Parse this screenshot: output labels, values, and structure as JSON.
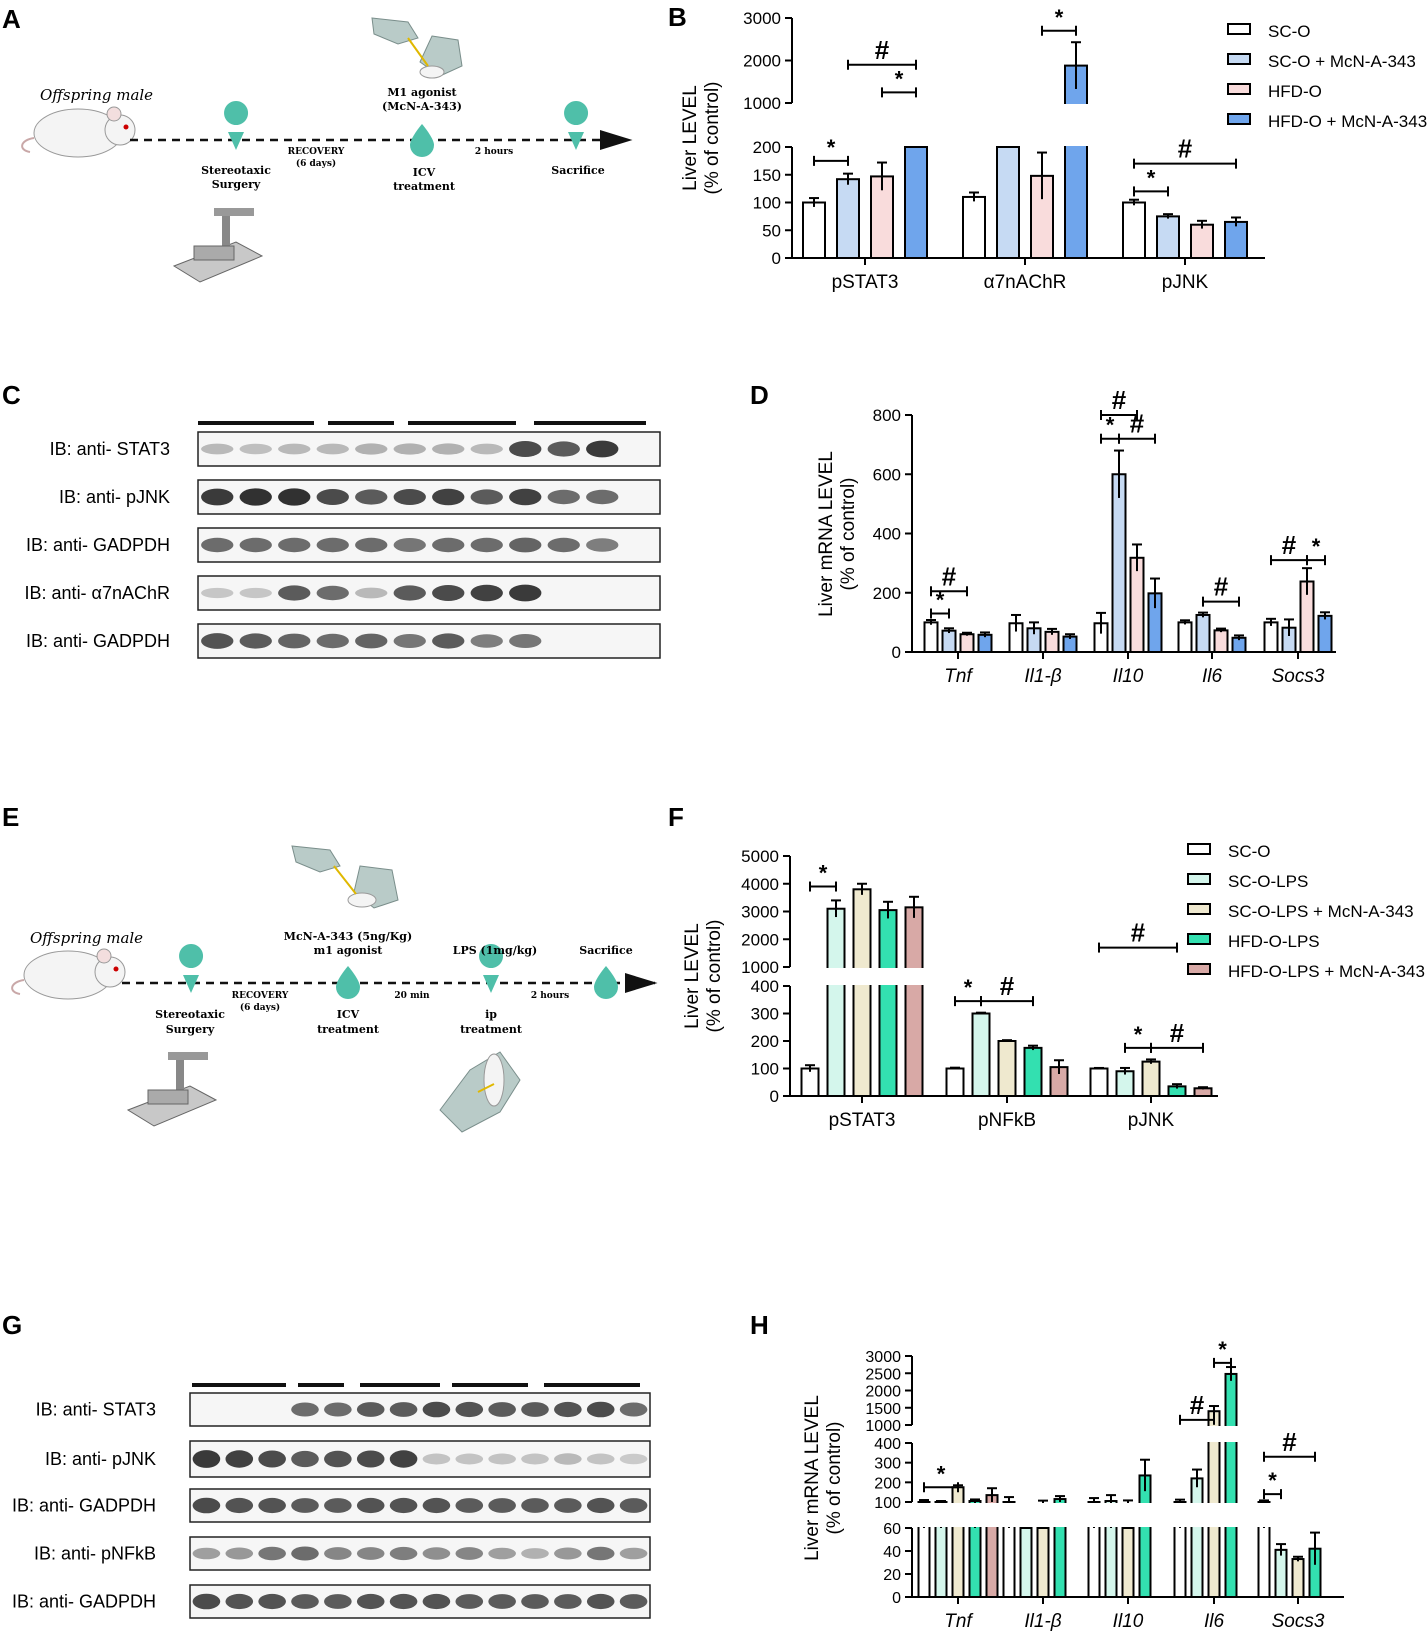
{
  "panel_letters": {
    "A": "A",
    "B": "B",
    "C": "C",
    "D": "D",
    "E": "E",
    "F": "F",
    "G": "G",
    "H": "H"
  },
  "schematic_A": {
    "offspring": "Offspring male",
    "agent_line1": "M1 agonist",
    "agent_line2": "(McN-A-343)",
    "recovery": "RECOVERY",
    "recovery_days": "(6 days)",
    "interval": "2 hours",
    "step1_line1": "Stereotaxic",
    "step1_line2": "Surgery",
    "step2_line1": "ICV",
    "step2_line2": "treatment",
    "step3": "Sacrifice"
  },
  "schematic_E": {
    "offspring": "Offspring male",
    "agent_line1": "McN-A-343 (5ng/Kg)",
    "agent_line2": "m1 agonist",
    "lps": "LPS (1mg/kg)",
    "sacrifice": "Sacrifice",
    "recovery": "RECOVERY",
    "recovery_days": "(6 days)",
    "interval1": "20 min",
    "interval2": "2 hours",
    "step1_line1": "Stereotaxic",
    "step1_line2": "Surgery",
    "step2_line1": "ICV",
    "step2_line2": "treatment",
    "step3_line1": "ip",
    "step3_line2": "treatment"
  },
  "blot_C": {
    "labels": [
      "IB: anti- STAT3",
      "IB: anti- pJNK",
      "IB: anti- GADPDH",
      "IB: anti- α7nAChR",
      "IB: anti- GADPDH"
    ]
  },
  "blot_G": {
    "labels": [
      "IB: anti- STAT3",
      "IB: anti- pJNK",
      "IB: anti- GADPDH",
      "IB: anti- pNFkB",
      "IB: anti- GADPDH"
    ]
  },
  "colors": {
    "sco": "#ffffff",
    "sco_mcn": "#c6daf3",
    "hfd": "#f9dcdc",
    "hfd_mcn": "#6fa5ec",
    "sco_lps": "#d4f6ec",
    "sco_lps_mcn": "#efe9cf",
    "hfd_lps": "#33e0b0",
    "hfd_lps_mcn": "#d8a9a6",
    "teal": "#4fbfa9"
  },
  "chart_data": [
    {
      "panel": "B",
      "type": "bar",
      "ylabel": "Liver LEVEL",
      "ylabel_sub": "(% of control)",
      "categories": [
        "pSTAT3",
        "α7nAChR",
        "pJNK"
      ],
      "ylim_lower": [
        0,
        200
      ],
      "ylim_upper": [
        1000,
        3000
      ],
      "yticks_lower": [
        0,
        50,
        100,
        150,
        200
      ],
      "yticks_upper": [
        1000,
        2000,
        3000
      ],
      "series": [
        {
          "name": "SC-O",
          "color": "#ffffff",
          "values": [
            100,
            110,
            100
          ],
          "err": [
            8,
            8,
            5
          ]
        },
        {
          "name": "SC-O + McN-A-343",
          "color": "#c6daf3",
          "values": [
            142,
            650,
            75
          ],
          "err": [
            10,
            320,
            4
          ]
        },
        {
          "name": "HFD-O",
          "color": "#f9dcdc",
          "values": [
            147,
            148,
            60
          ],
          "err": [
            25,
            42,
            7
          ]
        },
        {
          "name": "HFD-O + McN-A-343",
          "color": "#6fa5ec",
          "values": [
            750,
            1880,
            65
          ],
          "err": [
            230,
            550,
            8
          ]
        }
      ],
      "annotations": [
        {
          "symbol": "*",
          "cat": 0,
          "from": 0,
          "to": 1,
          "y": 175
        },
        {
          "symbol": "#",
          "cat": 0,
          "from": 1,
          "to": 3,
          "y": 1900
        },
        {
          "symbol": "*",
          "cat": 0,
          "from": 2,
          "to": 3,
          "y": 1250
        },
        {
          "symbol": "*",
          "cat": 1,
          "from": 2,
          "to": 3,
          "y": 2700
        },
        {
          "symbol": "#",
          "cat": 2,
          "from": 0,
          "to": 3,
          "y": 170
        },
        {
          "symbol": "*",
          "cat": 2,
          "from": 0,
          "to": 1,
          "y": 120
        }
      ]
    },
    {
      "panel": "D",
      "type": "bar",
      "ylabel": "Liver mRNA LEVEL",
      "ylabel_sub": "(% of control)",
      "categories": [
        "Tnf",
        "Il1-β",
        "Il10",
        "Il6",
        "Socs3"
      ],
      "ylim": [
        0,
        800
      ],
      "yticks": [
        0,
        200,
        400,
        600,
        800
      ],
      "series": [
        {
          "name": "SC-O",
          "color": "#ffffff",
          "values": [
            100,
            97,
            97,
            100,
            100
          ],
          "err": [
            8,
            28,
            35,
            7,
            12
          ]
        },
        {
          "name": "SC-O + McN-A-343",
          "color": "#c6daf3",
          "values": [
            72,
            80,
            600,
            125,
            82
          ],
          "err": [
            8,
            20,
            80,
            8,
            28
          ]
        },
        {
          "name": "HFD-O",
          "color": "#f9dcdc",
          "values": [
            60,
            68,
            318,
            73,
            238
          ],
          "err": [
            5,
            10,
            45,
            6,
            45
          ]
        },
        {
          "name": "HFD-O + McN-A-343",
          "color": "#6fa5ec",
          "values": [
            58,
            52,
            198,
            48,
            122
          ],
          "err": [
            8,
            8,
            50,
            8,
            12
          ]
        }
      ],
      "annotations": [
        {
          "symbol": "#",
          "cat": 0,
          "from": 0,
          "to": 2,
          "y": 205
        },
        {
          "symbol": "*",
          "cat": 0,
          "from": 0,
          "to": 1,
          "y": 130
        },
        {
          "symbol": "#",
          "cat": 2,
          "from": 0,
          "to": 2,
          "y": 818
        },
        {
          "symbol": "*",
          "cat": 2,
          "from": 0,
          "to": 1,
          "y": 720
        },
        {
          "symbol": "#",
          "cat": 2,
          "from": 1,
          "to": 3,
          "y": 720
        },
        {
          "symbol": "#",
          "cat": 3,
          "from": 1,
          "to": 3,
          "y": 170
        },
        {
          "symbol": "#",
          "cat": 4,
          "from": 0,
          "to": 2,
          "y": 310
        },
        {
          "symbol": "*",
          "cat": 4,
          "from": 2,
          "to": 3,
          "y": 310
        }
      ]
    },
    {
      "panel": "F",
      "type": "bar",
      "ylabel": "Liver LEVEL",
      "ylabel_sub": "(% of control)",
      "categories": [
        "pSTAT3",
        "pNFkB",
        "pJNK"
      ],
      "ylim_lower": [
        0,
        400
      ],
      "ylim_upper": [
        1000,
        5000
      ],
      "yticks_lower": [
        0,
        100,
        200,
        300,
        400
      ],
      "yticks_upper": [
        1000,
        2000,
        3000,
        4000,
        5000
      ],
      "series": [
        {
          "name": "SC-O",
          "color": "#ffffff",
          "values": [
            100,
            100,
            100
          ],
          "err": [
            12,
            3,
            2
          ]
        },
        {
          "name": "SC-O-LPS",
          "color": "#d4f6ec",
          "values": [
            3100,
            300,
            90
          ],
          "err": [
            300,
            3,
            12
          ]
        },
        {
          "name": "SC-O-LPS + McN-A-343",
          "color": "#efe9cf",
          "values": [
            3800,
            200,
            125
          ],
          "err": [
            200,
            3,
            8
          ]
        },
        {
          "name": "HFD-O-LPS",
          "color": "#33e0b0",
          "values": [
            3050,
            175,
            35
          ],
          "err": [
            300,
            8,
            8
          ]
        },
        {
          "name": "HFD-O-LPS + McN-A-343",
          "color": "#d8a9a6",
          "values": [
            3150,
            105,
            28
          ],
          "err": [
            380,
            25,
            4
          ]
        }
      ],
      "annotations": [
        {
          "symbol": "*",
          "cat": 0,
          "from": 0,
          "to": 1,
          "y": 3900
        },
        {
          "symbol": "*",
          "cat": 1,
          "from": 0,
          "to": 1,
          "y": 345
        },
        {
          "symbol": "#",
          "cat": 1,
          "from": 1,
          "to": 3,
          "y": 345
        },
        {
          "symbol": "#",
          "cat": 2,
          "from": 0,
          "to": 3,
          "y": 1700
        },
        {
          "symbol": "*",
          "cat": 2,
          "from": 1,
          "to": 2,
          "y": 175
        },
        {
          "symbol": "#",
          "cat": 2,
          "from": 2,
          "to": 4,
          "y": 175
        }
      ]
    },
    {
      "panel": "H",
      "type": "bar",
      "ylabel": "Liver mRNA LEVEL",
      "ylabel_sub": "(% of control)",
      "categories": [
        "Tnf",
        "Il1-β",
        "Il10",
        "Il6",
        "Socs3"
      ],
      "ylim_lower": [
        0,
        60
      ],
      "ylim_middle": [
        100,
        400
      ],
      "ylim_upper": [
        1000,
        3000
      ],
      "yticks_lower": [
        0,
        20,
        40,
        60
      ],
      "yticks_middle": [
        100,
        200,
        300,
        400
      ],
      "yticks_upper": [
        1000,
        1500,
        2000,
        2500,
        3000
      ],
      "series": [
        {
          "name": "SC-O",
          "color": "#ffffff",
          "values": [
            100,
            100,
            100,
            100,
            100
          ],
          "err": [
            10,
            25,
            20,
            12,
            8
          ]
        },
        {
          "name": "SC-O-LPS",
          "color": "#d4f6ec",
          "values": [
            100,
            82,
            105,
            220,
            41
          ],
          "err": [
            5,
            10,
            30,
            45,
            5
          ]
        },
        {
          "name": "SC-O-LPS + McN-A-343",
          "color": "#efe9cf",
          "values": [
            175,
            95,
            90,
            1400,
            33
          ],
          "err": [
            10,
            12,
            18,
            150,
            2
          ]
        },
        {
          "name": "HFD-O-LPS",
          "color": "#33e0b0",
          "values": [
            105,
            115,
            235,
            2480,
            42
          ],
          "err": [
            8,
            15,
            80,
            200,
            14
          ]
        },
        {
          "name": "HFD-O-LPS + McN-A-343",
          "color": "#d8a9a6",
          "values": [
            135,
            0,
            0,
            0,
            0
          ],
          "err": [
            35,
            0,
            0,
            0,
            0
          ]
        }
      ],
      "annotations": [
        {
          "symbol": "*",
          "cat": 0,
          "from": 0,
          "to": 2,
          "y": 175
        },
        {
          "symbol": "#",
          "cat": 3,
          "from": 0,
          "to": 2,
          "y": 1150
        },
        {
          "symbol": "*",
          "cat": 3,
          "from": 2,
          "to": 3,
          "y": 2800
        },
        {
          "symbol": "#",
          "cat": 4,
          "from": 0,
          "to": 3,
          "y": 330
        },
        {
          "symbol": "*",
          "cat": 4,
          "from": 0,
          "to": 1,
          "y": 140
        }
      ]
    }
  ]
}
